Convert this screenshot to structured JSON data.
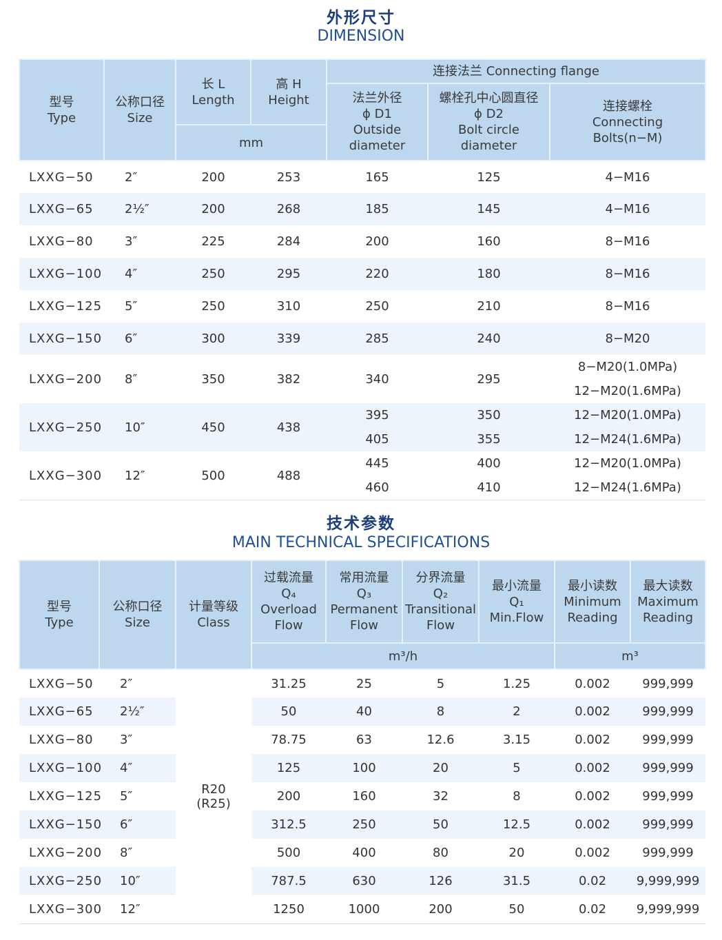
{
  "dimension": {
    "title_cn": "外形尺寸",
    "title_en": "DIMENSION",
    "headers": {
      "type": [
        "型号",
        "Type"
      ],
      "size": [
        "公称口径",
        "Size"
      ],
      "length": [
        "长 L",
        "Length"
      ],
      "height": [
        "高 H",
        "Height"
      ],
      "unit": "mm",
      "flange": "连接法兰  Connecting flange",
      "d1": [
        "法兰外径",
        "ϕ D1",
        "Outside",
        "diameter"
      ],
      "d2": [
        "螺栓孔中心圆直径",
        "ϕ D2",
        "Bolt circle",
        "diameter"
      ],
      "bolts": [
        "连接螺栓",
        "Connecting",
        "Bolts(n−M)"
      ]
    },
    "rows": [
      {
        "type": "LXXG−50",
        "size": "2″",
        "length": "200",
        "height": "253",
        "d1": [
          "165"
        ],
        "d2": [
          "125"
        ],
        "bolts": [
          "4−M16"
        ]
      },
      {
        "type": "LXXG−65",
        "size": "2½″",
        "length": "200",
        "height": "268",
        "d1": [
          "185"
        ],
        "d2": [
          "145"
        ],
        "bolts": [
          "4−M16"
        ]
      },
      {
        "type": "LXXG−80",
        "size": "3″",
        "length": "225",
        "height": "284",
        "d1": [
          "200"
        ],
        "d2": [
          "160"
        ],
        "bolts": [
          "8−M16"
        ]
      },
      {
        "type": "LXXG−100",
        "size": "4″",
        "length": "250",
        "height": "295",
        "d1": [
          "220"
        ],
        "d2": [
          "180"
        ],
        "bolts": [
          "8−M16"
        ]
      },
      {
        "type": "LXXG−125",
        "size": "5″",
        "length": "250",
        "height": "310",
        "d1": [
          "250"
        ],
        "d2": [
          "210"
        ],
        "bolts": [
          "8−M16"
        ]
      },
      {
        "type": "LXXG−150",
        "size": "6″",
        "length": "300",
        "height": "339",
        "d1": [
          "285"
        ],
        "d2": [
          "240"
        ],
        "bolts": [
          "8−M20"
        ]
      },
      {
        "type": "LXXG−200",
        "size": "8″",
        "length": "350",
        "height": "382",
        "d1": [
          "340"
        ],
        "d2": [
          "295"
        ],
        "bolts": [
          "8−M20(1.0MPa)",
          "12−M20(1.6MPa)"
        ]
      },
      {
        "type": "LXXG−250",
        "size": "10″",
        "length": "450",
        "height": "438",
        "d1": [
          "395",
          "405"
        ],
        "d2": [
          "350",
          "355"
        ],
        "bolts": [
          "12−M20(1.0MPa)",
          "12−M24(1.6MPa)"
        ]
      },
      {
        "type": "LXXG−300",
        "size": "12″",
        "length": "500",
        "height": "488",
        "d1": [
          "445",
          "460"
        ],
        "d2": [
          "400",
          "410"
        ],
        "bolts": [
          "12−M20(1.0MPa)",
          "12−M24(1.6MPa)"
        ]
      }
    ]
  },
  "specs": {
    "title_cn": "技术参数",
    "title_en": "MAIN TECHNICAL SPECIFICATIONS",
    "headers": {
      "type": [
        "型号",
        "Type"
      ],
      "size": [
        "公称口径",
        "Size"
      ],
      "class": [
        "计量等级",
        "Class"
      ],
      "q4": [
        "过载流量",
        "Q₄",
        "Overload",
        "Flow"
      ],
      "q3": [
        "常用流量",
        "Q₃",
        "Permanent",
        "Flow"
      ],
      "q2": [
        "分界流量",
        "Q₂",
        "Transitional",
        "Flow"
      ],
      "q1": [
        "最小流量",
        "Q₁",
        "Min.Flow"
      ],
      "min": [
        "最小读数",
        "Minimum",
        "Reading"
      ],
      "max": [
        "最大读数",
        "Maximum",
        "Reading"
      ],
      "flow_unit": "m³/h",
      "reading_unit": "m³"
    },
    "class_value": [
      "R20",
      "(R25)"
    ],
    "rows": [
      {
        "type": "LXXG−50",
        "size": "2″",
        "q4": "31.25",
        "q3": "25",
        "q2": "5",
        "q1": "1.25",
        "min": "0.002",
        "max": "999,999"
      },
      {
        "type": "LXXG−65",
        "size": "2½″",
        "q4": "50",
        "q3": "40",
        "q2": "8",
        "q1": "2",
        "min": "0.002",
        "max": "999,999"
      },
      {
        "type": "LXXG−80",
        "size": "3″",
        "q4": "78.75",
        "q3": "63",
        "q2": "12.6",
        "q1": "3.15",
        "min": "0.002",
        "max": "999,999"
      },
      {
        "type": "LXXG−100",
        "size": "4″",
        "q4": "125",
        "q3": "100",
        "q2": "20",
        "q1": "5",
        "min": "0.002",
        "max": "999,999"
      },
      {
        "type": "LXXG−125",
        "size": "5″",
        "q4": "200",
        "q3": "160",
        "q2": "32",
        "q1": "8",
        "min": "0.002",
        "max": "999,999"
      },
      {
        "type": "LXXG−150",
        "size": "6″",
        "q4": "312.5",
        "q3": "250",
        "q2": "50",
        "q1": "12.5",
        "min": "0.002",
        "max": "999,999"
      },
      {
        "type": "LXXG−200",
        "size": "8″",
        "q4": "500",
        "q3": "400",
        "q2": "80",
        "q1": "20",
        "min": "0.002",
        "max": "999,999"
      },
      {
        "type": "LXXG−250",
        "size": "10″",
        "q4": "787.5",
        "q3": "630",
        "q2": "126",
        "q1": "31.5",
        "min": "0.02",
        "max": "9,999,999"
      },
      {
        "type": "LXXG−300",
        "size": "12″",
        "q4": "1250",
        "q3": "1000",
        "q2": "200",
        "q1": "50",
        "min": "0.02",
        "max": "9,999,999"
      }
    ]
  }
}
